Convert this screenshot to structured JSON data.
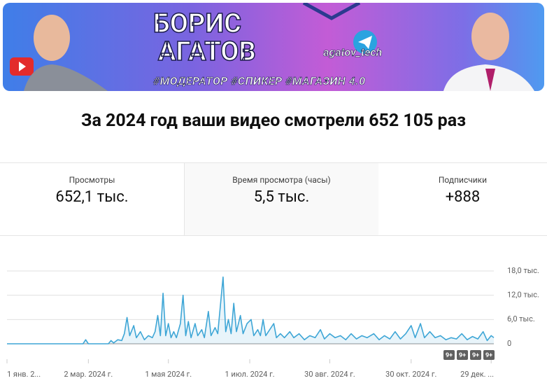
{
  "banner": {
    "name_line1": "БОРИС",
    "name_line2": "АГАТОВ",
    "handle": "agatov_tech",
    "tags": "#МОДЕРАТОР #СПИКЕР #МАГАЗИН 4.0"
  },
  "headline": "За 2024 год ваши видео смотрели 652 105 раз",
  "metrics": [
    {
      "label": "Просмотры",
      "value": "652,1 тыс."
    },
    {
      "label": "Время просмотра (часы)",
      "value": "5,5 тыс."
    },
    {
      "label": "Подписчики",
      "value": "+888"
    }
  ],
  "chart_data": {
    "type": "line",
    "x": [
      0,
      10,
      20,
      30,
      40,
      50,
      57,
      59,
      61,
      70,
      76,
      78,
      80,
      83,
      86,
      88,
      90,
      92,
      95,
      97,
      100,
      103,
      106,
      109,
      111,
      113,
      115,
      117,
      119,
      121,
      123,
      125,
      127,
      130,
      132,
      134,
      136,
      138,
      141,
      143,
      146,
      148,
      151,
      153,
      156,
      158,
      160,
      162,
      164,
      166,
      168,
      170,
      172,
      175,
      177,
      180,
      183,
      185,
      188,
      190,
      192,
      194,
      197,
      200,
      202,
      205,
      208,
      212,
      215,
      219,
      223,
      227,
      231,
      235,
      238,
      242,
      246,
      250,
      254,
      258,
      262,
      266,
      270,
      275,
      279,
      283,
      287,
      291,
      295,
      299,
      303,
      306,
      310,
      313,
      317,
      321,
      325,
      329,
      333,
      337,
      341,
      345,
      349,
      353,
      357,
      360,
      363,
      365
    ],
    "series": [
      {
        "color": "#3ea6d6",
        "values": [
          0,
          0,
          0,
          0,
          0,
          0,
          0,
          1000,
          0,
          0,
          0,
          800,
          200,
          1000,
          800,
          2500,
          6500,
          2000,
          4500,
          1500,
          3000,
          1000,
          2000,
          1500,
          3000,
          7000,
          2000,
          12500,
          2000,
          5000,
          1500,
          3000,
          1500,
          5000,
          12000,
          2000,
          5500,
          1500,
          5000,
          2000,
          3500,
          1500,
          8000,
          2000,
          4000,
          2500,
          9500,
          16500,
          3000,
          6000,
          2500,
          10000,
          3000,
          7000,
          2500,
          5000,
          6000,
          2000,
          3500,
          2000,
          6000,
          2000,
          3500,
          5000,
          1500,
          2500,
          1500,
          3000,
          1500,
          2500,
          1000,
          2000,
          1500,
          3500,
          1200,
          2500,
          1500,
          2000,
          1000,
          2500,
          1200,
          2000,
          1500,
          2500,
          1000,
          2000,
          1200,
          3000,
          1200,
          2500,
          4500,
          1500,
          5000,
          1500,
          3000,
          1500,
          2000,
          1000,
          1500,
          1200,
          2500,
          1000,
          1800,
          1200,
          3000,
          800,
          2000,
          1500
        ]
      }
    ],
    "xlim": [
      0,
      365
    ],
    "xticks": [
      {
        "value": 0,
        "label": "1 янв. 2..."
      },
      {
        "value": 61,
        "label": "2 мар. 2024 г."
      },
      {
        "value": 121,
        "label": "1 мая 2024 г."
      },
      {
        "value": 182,
        "label": "1 июл. 2024 г."
      },
      {
        "value": 242,
        "label": "30 авг. 2024 г."
      },
      {
        "value": 303,
        "label": "30 окт. 2024 г."
      },
      {
        "value": 363,
        "label": "29 дек. ..."
      }
    ],
    "ylim": [
      0,
      18000
    ],
    "yticks": [
      0,
      {
        "value": 6000,
        "label": "6,0 тыс."
      },
      {
        "value": 12000,
        "label": "12,0 тыс."
      },
      {
        "value": 18000,
        "label": "18,0 тыс."
      }
    ],
    "grid": true,
    "annotations": [
      "9+",
      "9+",
      "9+",
      "9+"
    ]
  }
}
